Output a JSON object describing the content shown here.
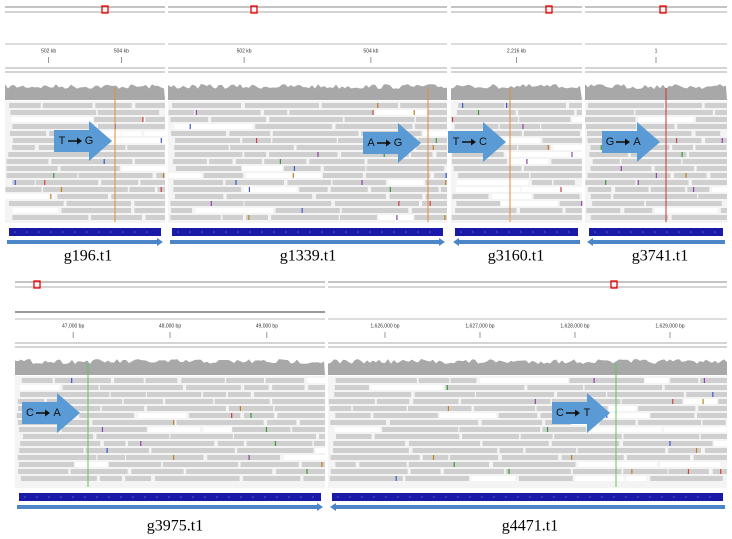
{
  "panels": [
    {
      "label": "g196.t1",
      "from": "T",
      "to": "G",
      "ruler": [
        "502 kb",
        "504 kb"
      ]
    },
    {
      "label": "g1339.t1",
      "from": "A",
      "to": "G",
      "ruler": [
        "502 kb",
        "504 kb"
      ]
    },
    {
      "label": "g3160.t1",
      "from": "T",
      "to": "C",
      "ruler": [
        "2,216 kb"
      ]
    },
    {
      "label": "g3741.t1",
      "from": "G",
      "to": "A",
      "ruler": [
        "1"
      ]
    },
    {
      "label": "g3975.t1",
      "from": "C",
      "to": "A",
      "ruler": [
        "47,000 bp",
        "48,000 bp",
        "49,000 bp"
      ]
    },
    {
      "label": "g4471.t1",
      "from": "C",
      "to": "T",
      "ruler": [
        "1,626,000 bp",
        "1,627,000 bp",
        "1,628,000 bp",
        "1,629,000 bp"
      ]
    }
  ]
}
